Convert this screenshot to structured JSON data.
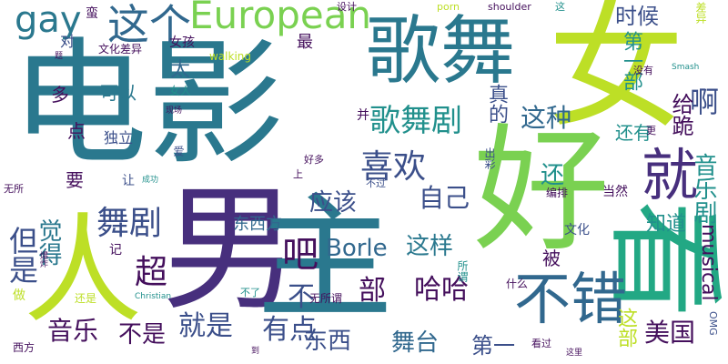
{
  "palette": {
    "deep_purple": "#440f5c",
    "purple": "#472f7d",
    "indigo": "#3b4f8a",
    "blue": "#31688e",
    "teal_blue": "#2a788e",
    "teal": "#21908c",
    "sea_green": "#22a884",
    "green": "#44bf70",
    "light_green": "#7ad151",
    "lime": "#bddf26",
    "yellow": "#fde725"
  },
  "words": [
    {
      "text": "电影",
      "color": "#2a788e",
      "vertical": false
    },
    {
      "text": "男",
      "color": "#472f7d",
      "vertical": false
    },
    {
      "text": "主",
      "color": "#2a788e",
      "vertical": false
    },
    {
      "text": "好",
      "color": "#7ad151",
      "vertical": false
    },
    {
      "text": "女",
      "color": "#bddf26",
      "vertical": false
    },
    {
      "text": "人",
      "color": "#bddf26",
      "vertical": false
    },
    {
      "text": "看",
      "color": "#22a884",
      "vertical": true
    },
    {
      "text": "歌舞",
      "color": "#2a788e",
      "vertical": false
    },
    {
      "text": "不错",
      "color": "#31688e",
      "vertical": false
    },
    {
      "text": "就",
      "color": "#472f7d",
      "vertical": false
    },
    {
      "text": "European",
      "color": "#7ad151",
      "vertical": false
    },
    {
      "text": "这个",
      "color": "#31688e",
      "vertical": false
    },
    {
      "text": "gay",
      "color": "#2a788e",
      "vertical": false
    },
    {
      "text": "歌舞剧",
      "color": "#21908c",
      "vertical": false
    },
    {
      "text": "喜欢",
      "color": "#3b4f8a",
      "vertical": false
    },
    {
      "text": "舞剧",
      "color": "#3b4f8a",
      "vertical": false
    },
    {
      "text": "吧",
      "color": "#440f5c",
      "vertical": false
    },
    {
      "text": "超",
      "color": "#440f5c",
      "vertical": false
    },
    {
      "text": "但是",
      "color": "#3b4f8a",
      "vertical": true
    },
    {
      "text": "觉得",
      "color": "#2a788e",
      "vertical": true
    },
    {
      "text": "就是",
      "color": "#3b4f8a",
      "vertical": false
    },
    {
      "text": "有点",
      "color": "#3b4f8a",
      "vertical": false
    },
    {
      "text": "音乐",
      "color": "#440f5c",
      "vertical": false
    },
    {
      "text": "不是",
      "color": "#440f5c",
      "vertical": false
    },
    {
      "text": "东西",
      "color": "#3b4f8a",
      "vertical": false
    },
    {
      "text": "舞台",
      "color": "#31688e",
      "vertical": false
    },
    {
      "text": "美国",
      "color": "#440f5c",
      "vertical": false
    },
    {
      "text": "第一",
      "color": "#3b4f8a",
      "vertical": false
    },
    {
      "text": "哈哈",
      "color": "#440f5c",
      "vertical": false
    },
    {
      "text": "部",
      "color": "#440f5c",
      "vertical": false
    },
    {
      "text": "不",
      "color": "#3b4f8a",
      "vertical": false
    },
    {
      "text": "Borle",
      "color": "#31688e",
      "vertical": false
    },
    {
      "text": "这样",
      "color": "#2a788e",
      "vertical": false
    },
    {
      "text": "应该",
      "color": "#3b4f8a",
      "vertical": false
    },
    {
      "text": "自己",
      "color": "#3b4f8a",
      "vertical": false
    },
    {
      "text": "这种",
      "color": "#31688e",
      "vertical": false
    },
    {
      "text": "啊",
      "color": "#3b4f8a",
      "vertical": false
    },
    {
      "text": "时候",
      "color": "#3b4f8a",
      "vertical": false
    },
    {
      "text": "第一部",
      "color": "#21908c",
      "vertical": true
    },
    {
      "text": "音乐剧",
      "color": "#21908c",
      "vertical": true
    },
    {
      "text": "给跪",
      "color": "#440f5c",
      "vertical": true
    },
    {
      "text": "musical",
      "color": "#440f5c",
      "vertical": true
    },
    {
      "text": "还有",
      "color": "#21908c",
      "vertical": false
    },
    {
      "text": "知道",
      "color": "#21908c",
      "vertical": false
    },
    {
      "text": "还",
      "color": "#21908c",
      "vertical": false
    },
    {
      "text": "真的",
      "color": "#3b4f8a",
      "vertical": true
    },
    {
      "text": "太",
      "color": "#31688e",
      "vertical": true
    },
    {
      "text": "这部",
      "color": "#bddf26",
      "vertical": true
    },
    {
      "text": "被",
      "color": "#440f5c",
      "vertical": false
    },
    {
      "text": "要",
      "color": "#440f5c",
      "vertical": false
    },
    {
      "text": "可以",
      "color": "#2a788e",
      "vertical": false
    },
    {
      "text": "多",
      "color": "#440f5c",
      "vertical": false
    },
    {
      "text": "点",
      "color": "#440f5c",
      "vertical": false
    },
    {
      "text": "对",
      "color": "#3b4f8a",
      "vertical": false
    },
    {
      "text": "最",
      "color": "#440f5c",
      "vertical": false
    },
    {
      "text": "东西方",
      "color": "#31688e",
      "vertical": false
    },
    {
      "text": "蛮",
      "color": "#440f5c",
      "vertical": false
    },
    {
      "text": "女孩",
      "color": "#440f5c",
      "vertical": false
    },
    {
      "text": "文化差异",
      "color": "#440f5c",
      "vertical": false
    },
    {
      "text": "设计",
      "color": "#440f5c",
      "vertical": false
    },
    {
      "text": "porn",
      "color": "#bddf26",
      "vertical": false
    },
    {
      "text": "shoulder",
      "color": "#440f5c",
      "vertical": false
    },
    {
      "text": "这",
      "color": "#21908c",
      "vertical": false
    },
    {
      "text": "差异",
      "color": "#bddf26",
      "vertical": true
    },
    {
      "text": "walking",
      "color": "#bddf26",
      "vertical": false
    },
    {
      "text": "女人",
      "color": "#21908c",
      "vertical": false
    },
    {
      "text": "独立",
      "color": "#3b4f8a",
      "vertical": false
    },
    {
      "text": "让",
      "color": "#3b4f8a",
      "vertical": false
    },
    {
      "text": "并",
      "color": "#440f5c",
      "vertical": false
    },
    {
      "text": "没有",
      "color": "#440f5c",
      "vertical": false
    },
    {
      "text": "Smash",
      "color": "#21908c",
      "vertical": false
    },
    {
      "text": "更",
      "color": "#440f5c",
      "vertical": false
    },
    {
      "text": "当然",
      "color": "#440f5c",
      "vertical": false
    },
    {
      "text": "编排",
      "color": "#440f5c",
      "vertical": false
    },
    {
      "text": "出彩",
      "color": "#3b4f8a",
      "vertical": true
    },
    {
      "text": "不过",
      "color": "#3b4f8a",
      "vertical": false
    },
    {
      "text": "文化",
      "color": "#3b4f8a",
      "vertical": false
    },
    {
      "text": "什么",
      "color": "#440f5c",
      "vertical": false
    },
    {
      "text": "所谓",
      "color": "#21908c",
      "vertical": true
    },
    {
      "text": "无所谓",
      "color": "#440f5c",
      "vertical": false
    },
    {
      "text": "无所",
      "color": "#440f5c",
      "vertical": false
    },
    {
      "text": "记",
      "color": "#440f5c",
      "vertical": false
    },
    {
      "text": "好多",
      "color": "#440f5c",
      "vertical": false
    },
    {
      "text": "上",
      "color": "#440f5c",
      "vertical": false
    },
    {
      "text": "成功",
      "color": "#21908c",
      "vertical": false
    },
    {
      "text": "现场",
      "color": "#440f5c",
      "vertical": false
    },
    {
      "text": "爆炸",
      "color": "#440f5c",
      "vertical": true
    },
    {
      "text": "还是",
      "color": "#bddf26",
      "vertical": false
    },
    {
      "text": "做",
      "color": "#bddf26",
      "vertical": false
    },
    {
      "text": "Christian",
      "color": "#21908c",
      "vertical": false
    },
    {
      "text": "不了",
      "color": "#21908c",
      "vertical": false
    },
    {
      "text": "到",
      "color": "#440f5c",
      "vertical": false
    },
    {
      "text": "看过",
      "color": "#440f5c",
      "vertical": false
    },
    {
      "text": "这里",
      "color": "#440f5c",
      "vertical": false
    },
    {
      "text": "OMG",
      "color": "#3b4f8a",
      "vertical": true
    },
    {
      "text": "西方",
      "color": "#440f5c",
      "vertical": false
    },
    {
      "text": "题",
      "color": "#440f5c",
      "vertical": true
    },
    {
      "text": "爱",
      "color": "#3b4f8a",
      "vertical": true
    }
  ]
}
